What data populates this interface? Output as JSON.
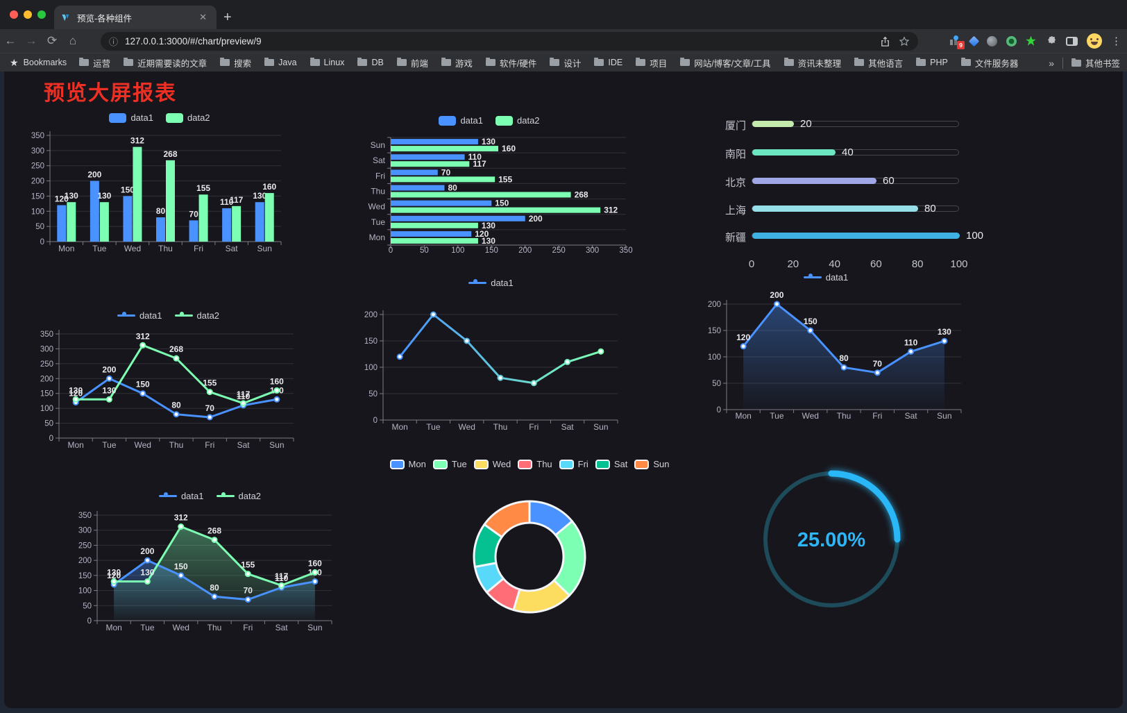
{
  "browser": {
    "tab_title": "预览-各种组件",
    "url": "127.0.0.1:3000/#/chart/preview/9",
    "bookmarks_label": "Bookmarks",
    "bookmarks": [
      "运营",
      "近期需要读的文章",
      "搜索",
      "Java",
      "Linux",
      "DB",
      "前端",
      "游戏",
      "软件/硬件",
      "设计",
      "IDE",
      "项目",
      "网站/博客/文章/工具",
      "资讯未整理",
      "其他语言",
      "PHP",
      "文件服务器"
    ],
    "overflow_chevron": "»",
    "other_bookmarks_label": "其他书签",
    "extension_badge": "9"
  },
  "page": {
    "title": "预览大屏报表",
    "title_color": "#ed2f24",
    "panel_bg": "#17161c"
  },
  "palette": {
    "data1": "#4992ff",
    "data2": "#7cffb2",
    "axis_text": "#b6b5c5",
    "value_label": "#e9e9ec",
    "grid_line": "#323138",
    "axis_line": "#7d7c87"
  },
  "chart_data": [
    {
      "id": "c1",
      "name": "grouped-bar-chart",
      "type": "bar",
      "categories": [
        "Mon",
        "Tue",
        "Wed",
        "Thu",
        "Fri",
        "Sat",
        "Sun"
      ],
      "series": [
        {
          "name": "data1",
          "color": "#4992ff",
          "values": [
            120,
            200,
            150,
            80,
            70,
            110,
            130
          ]
        },
        {
          "name": "data2",
          "color": "#7cffb2",
          "values": [
            130,
            130,
            312,
            268,
            155,
            117,
            160
          ]
        }
      ],
      "ylim": [
        0,
        350
      ],
      "yticks": [
        0,
        50,
        100,
        150,
        200,
        250,
        300,
        350
      ],
      "legend": [
        "data1",
        "data2"
      ],
      "legend_icon": "rect",
      "value_labels": true
    },
    {
      "id": "c2",
      "name": "horizontal-bar-chart",
      "type": "hbar",
      "categories": [
        "Mon",
        "Tue",
        "Wed",
        "Thu",
        "Fri",
        "Sat",
        "Sun"
      ],
      "display_order_top_to_bottom": [
        "Sun",
        "Sat",
        "Fri",
        "Thu",
        "Wed",
        "Tue",
        "Mon"
      ],
      "series": [
        {
          "name": "data1",
          "color": "#4992ff",
          "values": [
            120,
            200,
            150,
            80,
            70,
            110,
            130
          ]
        },
        {
          "name": "data2",
          "color": "#7cffb2",
          "values": [
            130,
            130,
            312,
            268,
            155,
            117,
            160
          ]
        }
      ],
      "xlim": [
        0,
        350
      ],
      "xticks": [
        0,
        50,
        100,
        150,
        200,
        250,
        300,
        350
      ],
      "legend": [
        "data1",
        "data2"
      ],
      "legend_icon": "rect",
      "value_labels": true
    },
    {
      "id": "c3",
      "name": "progress-bar-chart",
      "type": "progress",
      "max": 100,
      "rows": [
        {
          "label": "厦门",
          "value": 20,
          "color": "#c4ebad"
        },
        {
          "label": "南阳",
          "value": 40,
          "color": "#6be6c1"
        },
        {
          "label": "北京",
          "value": 60,
          "color": "#a0a7e6"
        },
        {
          "label": "上海",
          "value": 80,
          "color": "#96dee8"
        },
        {
          "label": "新疆",
          "value": 100,
          "color": "#3fb1e3"
        }
      ],
      "xticks": [
        0,
        20,
        40,
        60,
        80,
        100
      ]
    },
    {
      "id": "c4",
      "name": "line-chart",
      "type": "line",
      "categories": [
        "Mon",
        "Tue",
        "Wed",
        "Thu",
        "Fri",
        "Sat",
        "Sun"
      ],
      "series": [
        {
          "name": "data1",
          "color": "#4992ff",
          "values": [
            120,
            200,
            150,
            80,
            70,
            110,
            130
          ]
        },
        {
          "name": "data2",
          "color": "#7cffb2",
          "values": [
            130,
            130,
            312,
            268,
            155,
            117,
            160
          ]
        }
      ],
      "ylim": [
        0,
        350
      ],
      "yticks": [
        0,
        50,
        100,
        150,
        200,
        250,
        300,
        350
      ],
      "legend": [
        "data1",
        "data2"
      ],
      "legend_icon": "linecircle",
      "value_labels": true
    },
    {
      "id": "c5",
      "name": "gradient-line-chart",
      "type": "line",
      "categories": [
        "Mon",
        "Tue",
        "Wed",
        "Thu",
        "Fri",
        "Sat",
        "Sun"
      ],
      "series": [
        {
          "name": "data1",
          "gradient": [
            "#4992ff",
            "#7cffb2"
          ],
          "values": [
            120,
            200,
            150,
            80,
            70,
            110,
            130
          ]
        }
      ],
      "ylim": [
        0,
        200
      ],
      "yticks": [
        0,
        50,
        100,
        150,
        200
      ],
      "legend": [
        "data1"
      ],
      "legend_icon": "linecircle",
      "value_labels": false
    },
    {
      "id": "c6",
      "name": "area-line-chart",
      "type": "line",
      "categories": [
        "Mon",
        "Tue",
        "Wed",
        "Thu",
        "Fri",
        "Sat",
        "Sun"
      ],
      "series": [
        {
          "name": "data1",
          "color": "#4992ff",
          "values": [
            120,
            200,
            150,
            80,
            70,
            110,
            130
          ],
          "area": true,
          "area_color": "#4992ff"
        }
      ],
      "ylim": [
        0,
        200
      ],
      "yticks": [
        0,
        50,
        100,
        150,
        200
      ],
      "legend": [
        "data1"
      ],
      "legend_icon": "linecircle",
      "value_labels": true
    },
    {
      "id": "c7",
      "name": "double-area-line-chart",
      "type": "line",
      "categories": [
        "Mon",
        "Tue",
        "Wed",
        "Thu",
        "Fri",
        "Sat",
        "Sun"
      ],
      "series": [
        {
          "name": "data1",
          "color": "#4992ff",
          "values": [
            120,
            200,
            150,
            80,
            70,
            110,
            130
          ],
          "area": true,
          "area_color": "#4992ff"
        },
        {
          "name": "data2",
          "color": "#7cffb2",
          "values": [
            130,
            130,
            312,
            268,
            155,
            117,
            160
          ],
          "area": true,
          "area_color": "#7cffb2"
        }
      ],
      "ylim": [
        0,
        350
      ],
      "yticks": [
        0,
        50,
        100,
        150,
        200,
        250,
        300,
        350
      ],
      "legend": [
        "data1",
        "data2"
      ],
      "legend_icon": "linecircle",
      "value_labels": true
    },
    {
      "id": "c8",
      "name": "donut-chart",
      "type": "pie",
      "categories": [
        "Mon",
        "Tue",
        "Wed",
        "Thu",
        "Fri",
        "Sat",
        "Sun"
      ],
      "values": [
        120,
        200,
        150,
        80,
        70,
        110,
        130
      ],
      "colors": [
        "#4992ff",
        "#7cffb2",
        "#fddd60",
        "#ff6e76",
        "#58d9f9",
        "#05c091",
        "#ff8a45"
      ],
      "legend_icon": "borderrect"
    },
    {
      "id": "c9",
      "name": "gauge-chart",
      "type": "gauge",
      "label": "25.00%",
      "percent": 25,
      "color": "#2ab7f7",
      "track_color": "#1d4b59",
      "text_color": "#2db5f7"
    }
  ]
}
